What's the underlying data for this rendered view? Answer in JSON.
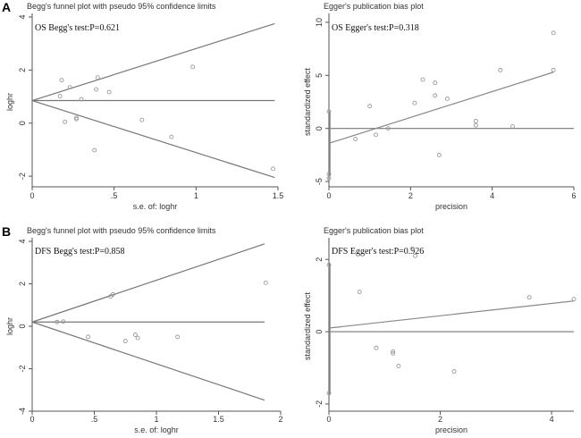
{
  "panel_letters": [
    "A",
    "B"
  ],
  "chart_data": [
    {
      "type": "scatter",
      "variant": "begg-funnel",
      "title": "Begg's funnel plot with pseudo 95% confidence limits",
      "annotation": "OS Begg's test:P=0.621",
      "xlabel": "s.e. of: loghr",
      "ylabel": "loghr",
      "xlim": [
        0,
        1.5
      ],
      "ylim": [
        -2.4,
        4
      ],
      "xticks": [
        0,
        0.5,
        1,
        1.5
      ],
      "xtick_labels": [
        "0",
        ".5",
        "1",
        "1.5"
      ],
      "yticks": [
        -2,
        0,
        2,
        4
      ],
      "ytick_labels": [
        "-2",
        "0",
        "2",
        "4"
      ],
      "pooled_estimate": 0.85,
      "confidence_limits": {
        "se_max": 1.48,
        "upper_at_max": 3.75,
        "lower_at_max": -2.05
      },
      "points": [
        [
          0.18,
          1.62
        ],
        [
          0.17,
          1.02
        ],
        [
          0.23,
          1.35
        ],
        [
          0.2,
          0.05
        ],
        [
          0.27,
          0.2
        ],
        [
          0.27,
          0.15
        ],
        [
          0.3,
          0.9
        ],
        [
          0.4,
          1.72
        ],
        [
          0.39,
          1.27
        ],
        [
          0.47,
          1.17
        ],
        [
          0.38,
          -1.02
        ],
        [
          0.67,
          0.12
        ],
        [
          0.85,
          -0.52
        ],
        [
          0.98,
          2.12
        ],
        [
          1.47,
          -1.72
        ]
      ]
    },
    {
      "type": "scatter",
      "variant": "egger-bias",
      "title": "Egger's publication bias plot",
      "annotation": "OS  Egger's test:P=0.318",
      "xlabel": "precision",
      "ylabel": "standardized effect",
      "xlim": [
        0,
        6
      ],
      "ylim": [
        -5.5,
        10.5
      ],
      "xticks": [
        0,
        2,
        4,
        6
      ],
      "xtick_labels": [
        "0",
        "2",
        "4",
        "6"
      ],
      "yticks": [
        -5,
        0,
        5,
        10
      ],
      "ytick_labels": [
        "-5",
        "0",
        "5",
        "10"
      ],
      "regression": {
        "x": [
          0,
          5.5
        ],
        "y": [
          -1.4,
          5.3
        ]
      },
      "intercept_ci": [
        -4.5,
        1.6
      ],
      "points": [
        [
          0.0,
          1.6
        ],
        [
          0.0,
          -4.3
        ],
        [
          0.0,
          -4.7
        ],
        [
          0.65,
          -1.0
        ],
        [
          1.0,
          2.1
        ],
        [
          1.15,
          -0.6
        ],
        [
          1.45,
          0.0
        ],
        [
          2.1,
          2.4
        ],
        [
          2.3,
          4.6
        ],
        [
          2.6,
          4.3
        ],
        [
          2.6,
          3.1
        ],
        [
          2.7,
          -2.5
        ],
        [
          2.9,
          2.8
        ],
        [
          3.6,
          0.7
        ],
        [
          3.6,
          0.3
        ],
        [
          4.2,
          5.5
        ],
        [
          4.5,
          0.2
        ],
        [
          5.5,
          9.0
        ],
        [
          5.5,
          5.5
        ]
      ]
    },
    {
      "type": "scatter",
      "variant": "begg-funnel",
      "title": "Begg's funnel plot with pseudo 95% confidence limits",
      "annotation": "DFS  Begg's test:P=0.858",
      "xlabel": "s.e. of: loghr",
      "ylabel": "loghr",
      "xlim": [
        0,
        2
      ],
      "ylim": [
        -4,
        4
      ],
      "xticks": [
        0,
        0.5,
        1,
        1.5,
        2
      ],
      "xtick_labels": [
        "0",
        ".5",
        "1",
        "1.5",
        "2"
      ],
      "yticks": [
        -4,
        -2,
        0,
        2,
        4
      ],
      "ytick_labels": [
        "-4",
        "-2",
        "0",
        "2",
        "4"
      ],
      "pooled_estimate": 0.2,
      "confidence_limits": {
        "se_max": 1.87,
        "upper_at_max": 3.88,
        "lower_at_max": -3.48
      },
      "points": [
        [
          0.2,
          0.2
        ],
        [
          0.25,
          0.22
        ],
        [
          0.45,
          -0.5
        ],
        [
          0.63,
          1.4
        ],
        [
          0.65,
          1.5
        ],
        [
          0.75,
          -0.7
        ],
        [
          0.83,
          -0.4
        ],
        [
          0.85,
          -0.55
        ],
        [
          1.17,
          -0.5
        ],
        [
          1.88,
          2.05
        ]
      ]
    },
    {
      "type": "scatter",
      "variant": "egger-bias",
      "title": "Egger's publication bias plot",
      "annotation": "DFS  Egger's test:P=0.926",
      "xlabel": "precision",
      "ylabel": "standardized effect",
      "xlim": [
        0,
        4.4
      ],
      "ylim": [
        -2.2,
        2.5
      ],
      "xticks": [
        0,
        2,
        4
      ],
      "xtick_labels": [
        "0",
        "2",
        "4"
      ],
      "yticks": [
        -2,
        0,
        2
      ],
      "ytick_labels": [
        "-2",
        "0",
        "2"
      ],
      "regression": {
        "x": [
          0,
          4.4
        ],
        "y": [
          0.1,
          0.85
        ]
      },
      "intercept_ci": [
        -1.75,
        1.9
      ],
      "points": [
        [
          0.0,
          1.85
        ],
        [
          0.0,
          -1.7
        ],
        [
          0.55,
          1.1
        ],
        [
          0.85,
          -0.45
        ],
        [
          1.15,
          -0.6
        ],
        [
          1.15,
          -0.55
        ],
        [
          1.25,
          -0.95
        ],
        [
          1.5,
          2.3
        ],
        [
          1.55,
          2.1
        ],
        [
          2.25,
          -1.1
        ],
        [
          3.6,
          0.95
        ],
        [
          4.4,
          0.9
        ]
      ]
    }
  ]
}
